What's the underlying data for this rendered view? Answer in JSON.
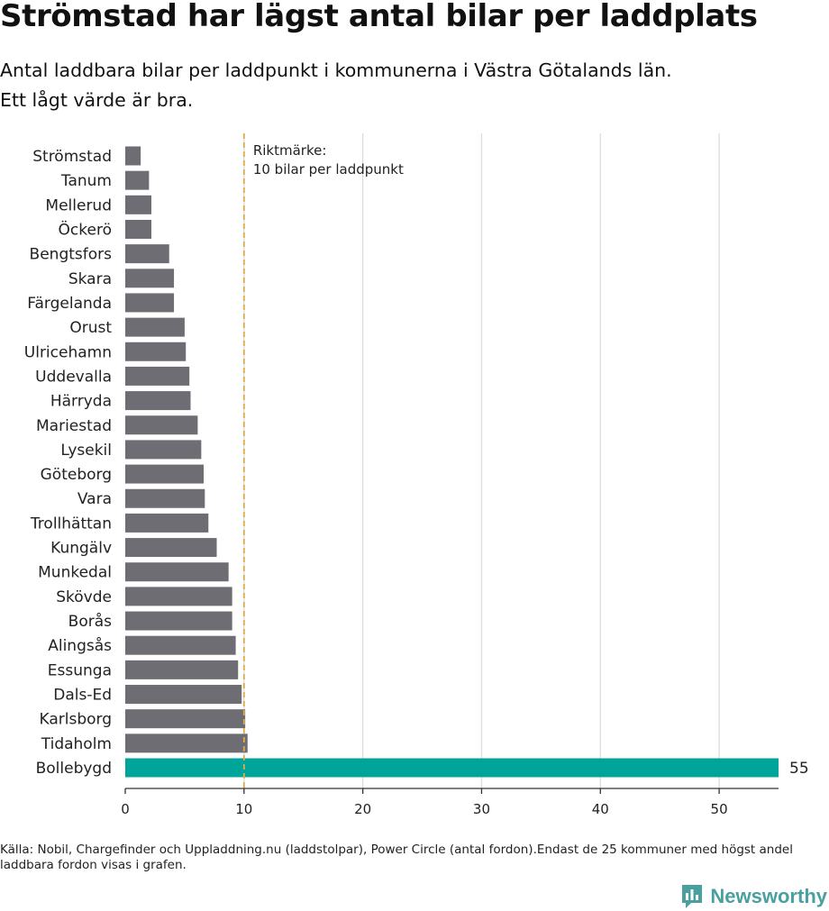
{
  "title": "Strömstad har lägst antal bilar per laddplats",
  "subtitle": {
    "line1": "Antal laddbara bilar per laddpunkt i kommunerna i Västra Götalands län.",
    "line2": "Ett lågt värde är bra."
  },
  "footer": {
    "source": "Källa: Nobil, Chargefinder och Uppladdning.nu (laddstolpar), Power Circle (antal fordon).Endast de 25 kommuner med högst andel laddbara fordon visas i grafen."
  },
  "logo": {
    "text": "Newsworthy",
    "icon": "newsworthy-logo-icon",
    "color": "#4a9fa0"
  },
  "chart_data": {
    "type": "bar",
    "orientation": "horizontal",
    "categories": [
      "Strömstad",
      "Tanum",
      "Mellerud",
      "Öckerö",
      "Bengtsfors",
      "Skara",
      "Färgelanda",
      "Orust",
      "Ulricehamn",
      "Uddevalla",
      "Härryda",
      "Mariestad",
      "Lysekil",
      "Göteborg",
      "Vara",
      "Trollhättan",
      "Kungälv",
      "Munkedal",
      "Skövde",
      "Borås",
      "Alingsås",
      "Essunga",
      "Dals-Ed",
      "Karlsborg",
      "Tidaholm",
      "Bollebygd"
    ],
    "values": [
      1.3,
      2.0,
      2.2,
      2.2,
      3.7,
      4.1,
      4.1,
      5.0,
      5.1,
      5.4,
      5.5,
      6.1,
      6.4,
      6.6,
      6.7,
      7.0,
      7.7,
      8.7,
      9.0,
      9.0,
      9.3,
      9.5,
      9.8,
      10.1,
      10.3,
      55
    ],
    "highlight": {
      "category": "Bollebygd",
      "value_label": "55"
    },
    "xlim": [
      0,
      55
    ],
    "xticks": [
      0,
      10,
      20,
      30,
      40,
      50
    ],
    "grid": true,
    "reference_line": {
      "value": 10,
      "label_line1": "Riktmärke:",
      "label_line2": "10 bilar per laddpunkt"
    },
    "colors": {
      "bar": "#6e6d74",
      "highlight": "#00a59a",
      "reference": "#e0aa4a",
      "grid": "#dcdcdc",
      "axis": "#333333"
    }
  }
}
